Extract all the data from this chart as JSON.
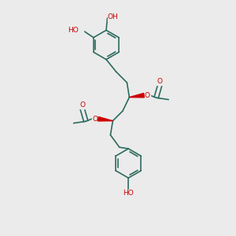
{
  "bg_color": "#ebebeb",
  "bond_color": "#2d6b5e",
  "atom_color_O": "#cc0000",
  "figsize": [
    3.0,
    3.0
  ],
  "dpi": 100,
  "lw": 1.2,
  "ring_r": 0.62,
  "xlim": [
    0,
    10
  ],
  "ylim": [
    0,
    10
  ]
}
